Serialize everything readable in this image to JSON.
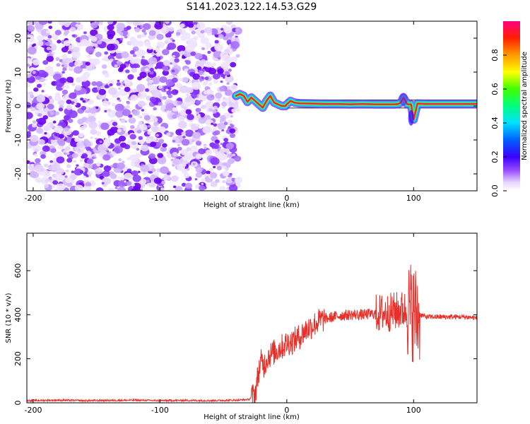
{
  "title": "S141.2023.122.14.53.G29",
  "chart_data": [
    {
      "type": "heatmap",
      "xlabel": "Height of straight line (km)",
      "ylabel": "Frequency (Hz)",
      "xlim": [
        -205,
        150
      ],
      "ylim": [
        -25,
        25
      ],
      "x_ticks": [
        -200,
        -100,
        0,
        100
      ],
      "y_ticks": [
        -20,
        -10,
        0,
        10,
        20
      ],
      "noise_region_x": [
        -205,
        -38
      ],
      "signal_trace": {
        "x": [
          -40,
          -37,
          -34,
          -31,
          -28,
          -25,
          -22,
          -19,
          -16,
          -13,
          -10,
          -7,
          -4,
          -1,
          0,
          3,
          6,
          10,
          20,
          30,
          40,
          50,
          60,
          70,
          80,
          85,
          88,
          90,
          92,
          95,
          98,
          100,
          103,
          110,
          120,
          130,
          140,
          150
        ],
        "y": [
          3,
          3.5,
          3,
          1.2,
          2.5,
          1.5,
          0.5,
          -0.5,
          1.5,
          3.0,
          1.0,
          0.5,
          0,
          0,
          0.5,
          1.5,
          1.0,
          0.8,
          0.7,
          0.6,
          0.6,
          0.5,
          0.6,
          0.5,
          0.5,
          0.5,
          0.6,
          1.0,
          2.5,
          0.5,
          0.5,
          -4,
          0.7,
          0.6,
          0.6,
          0.6,
          0.6,
          0.6
        ]
      },
      "colorbar": {
        "label": "Normalized spectral amplitude",
        "range": [
          0,
          1
        ],
        "ticks": [
          0.0,
          0.2,
          0.4,
          0.6,
          0.8
        ],
        "tick_labels": [
          "0.0",
          "0.2",
          "0.4",
          "0.6",
          "0.8"
        ]
      }
    },
    {
      "type": "line",
      "xlabel": "Height of straight line (km)",
      "ylabel": "SNR (10 * v/v)",
      "xlim": [
        -205,
        150
      ],
      "ylim": [
        0,
        770
      ],
      "x_ticks": [
        -200,
        -100,
        0,
        100
      ],
      "y_ticks": [
        0,
        200,
        400,
        600
      ],
      "series": [
        {
          "color": "#e8302a",
          "x": [
            -205,
            -180,
            -160,
            -140,
            -120,
            -100,
            -80,
            -60,
            -40,
            -30,
            -25,
            -22,
            -20,
            -18,
            -15,
            -10,
            -5,
            0,
            5,
            10,
            15,
            20,
            25,
            30,
            40,
            50,
            60,
            70,
            80,
            85,
            90,
            95,
            98,
            100,
            102,
            105,
            110,
            120,
            130,
            140,
            150
          ],
          "y": [
            10,
            12,
            10,
            11,
            12,
            10,
            11,
            10,
            12,
            15,
            40,
            150,
            190,
            170,
            210,
            230,
            250,
            270,
            280,
            300,
            330,
            350,
            370,
            380,
            395,
            400,
            400,
            405,
            410,
            415,
            420,
            420,
            420,
            410,
            400,
            400,
            390,
            390,
            390,
            390,
            385
          ]
        }
      ]
    }
  ]
}
